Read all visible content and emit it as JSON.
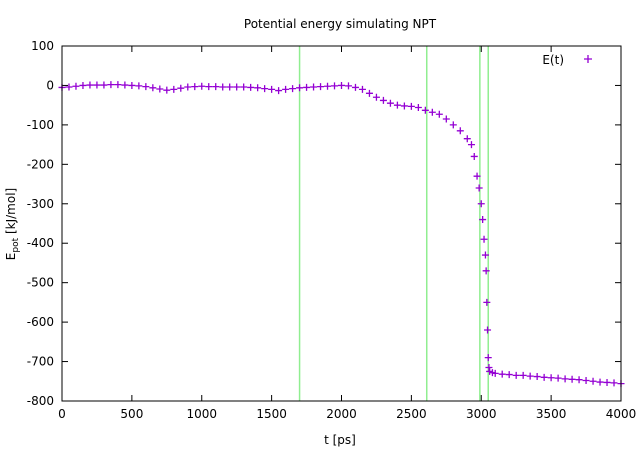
{
  "chart_data": {
    "type": "scatter",
    "title": "Potential energy simulating NPT",
    "xlabel": "t [ps]",
    "ylabel_main": "E",
    "ylabel_sub": "pot",
    "ylabel_rest": " [kJ/mol]",
    "xlim": [
      0,
      4000
    ],
    "ylim": [
      -800,
      100
    ],
    "xticks": [
      0,
      500,
      1000,
      1500,
      2000,
      2500,
      3000,
      3500,
      4000
    ],
    "yticks": [
      100,
      0,
      -100,
      -200,
      -300,
      -400,
      -500,
      -600,
      -700,
      -800
    ],
    "grid": false,
    "legend_position": "top-right",
    "series": [
      {
        "name": "E(t)",
        "color": "#9400d3",
        "marker": "plus",
        "points": [
          [
            0,
            -5
          ],
          [
            50,
            -4
          ],
          [
            100,
            -2
          ],
          [
            150,
            0
          ],
          [
            200,
            1
          ],
          [
            250,
            1
          ],
          [
            300,
            1
          ],
          [
            350,
            2
          ],
          [
            400,
            2
          ],
          [
            450,
            1
          ],
          [
            500,
            0
          ],
          [
            550,
            -1
          ],
          [
            600,
            -3
          ],
          [
            650,
            -6
          ],
          [
            700,
            -9
          ],
          [
            750,
            -12
          ],
          [
            800,
            -10
          ],
          [
            850,
            -7
          ],
          [
            900,
            -4
          ],
          [
            950,
            -3
          ],
          [
            1000,
            -2
          ],
          [
            1050,
            -3
          ],
          [
            1100,
            -3
          ],
          [
            1150,
            -4
          ],
          [
            1200,
            -4
          ],
          [
            1250,
            -4
          ],
          [
            1300,
            -4
          ],
          [
            1350,
            -5
          ],
          [
            1400,
            -6
          ],
          [
            1450,
            -8
          ],
          [
            1500,
            -10
          ],
          [
            1550,
            -13
          ],
          [
            1600,
            -10
          ],
          [
            1650,
            -8
          ],
          [
            1700,
            -6
          ],
          [
            1750,
            -5
          ],
          [
            1800,
            -4
          ],
          [
            1850,
            -3
          ],
          [
            1900,
            -2
          ],
          [
            1950,
            -1
          ],
          [
            2000,
            0
          ],
          [
            2050,
            -1
          ],
          [
            2100,
            -5
          ],
          [
            2150,
            -10
          ],
          [
            2200,
            -20
          ],
          [
            2250,
            -30
          ],
          [
            2300,
            -38
          ],
          [
            2350,
            -45
          ],
          [
            2400,
            -50
          ],
          [
            2450,
            -52
          ],
          [
            2500,
            -53
          ],
          [
            2550,
            -56
          ],
          [
            2600,
            -63
          ],
          [
            2650,
            -68
          ],
          [
            2700,
            -73
          ],
          [
            2750,
            -85
          ],
          [
            2800,
            -100
          ],
          [
            2850,
            -115
          ],
          [
            2900,
            -135
          ],
          [
            2930,
            -150
          ],
          [
            2950,
            -180
          ],
          [
            2970,
            -230
          ],
          [
            2985,
            -260
          ],
          [
            3000,
            -300
          ],
          [
            3010,
            -340
          ],
          [
            3020,
            -390
          ],
          [
            3030,
            -430
          ],
          [
            3035,
            -470
          ],
          [
            3040,
            -550
          ],
          [
            3045,
            -620
          ],
          [
            3050,
            -690
          ],
          [
            3055,
            -715
          ],
          [
            3060,
            -725
          ],
          [
            3080,
            -728
          ],
          [
            3100,
            -730
          ],
          [
            3150,
            -732
          ],
          [
            3200,
            -733
          ],
          [
            3250,
            -735
          ],
          [
            3300,
            -735
          ],
          [
            3350,
            -737
          ],
          [
            3400,
            -738
          ],
          [
            3450,
            -740
          ],
          [
            3500,
            -741
          ],
          [
            3550,
            -742
          ],
          [
            3600,
            -744
          ],
          [
            3650,
            -745
          ],
          [
            3700,
            -746
          ],
          [
            3750,
            -748
          ],
          [
            3800,
            -750
          ],
          [
            3850,
            -752
          ],
          [
            3900,
            -753
          ],
          [
            3950,
            -754
          ],
          [
            4000,
            -756
          ]
        ]
      }
    ],
    "vertical_lines": {
      "color": "#90ee90",
      "x": [
        1700,
        2610,
        2990,
        3050
      ]
    }
  }
}
